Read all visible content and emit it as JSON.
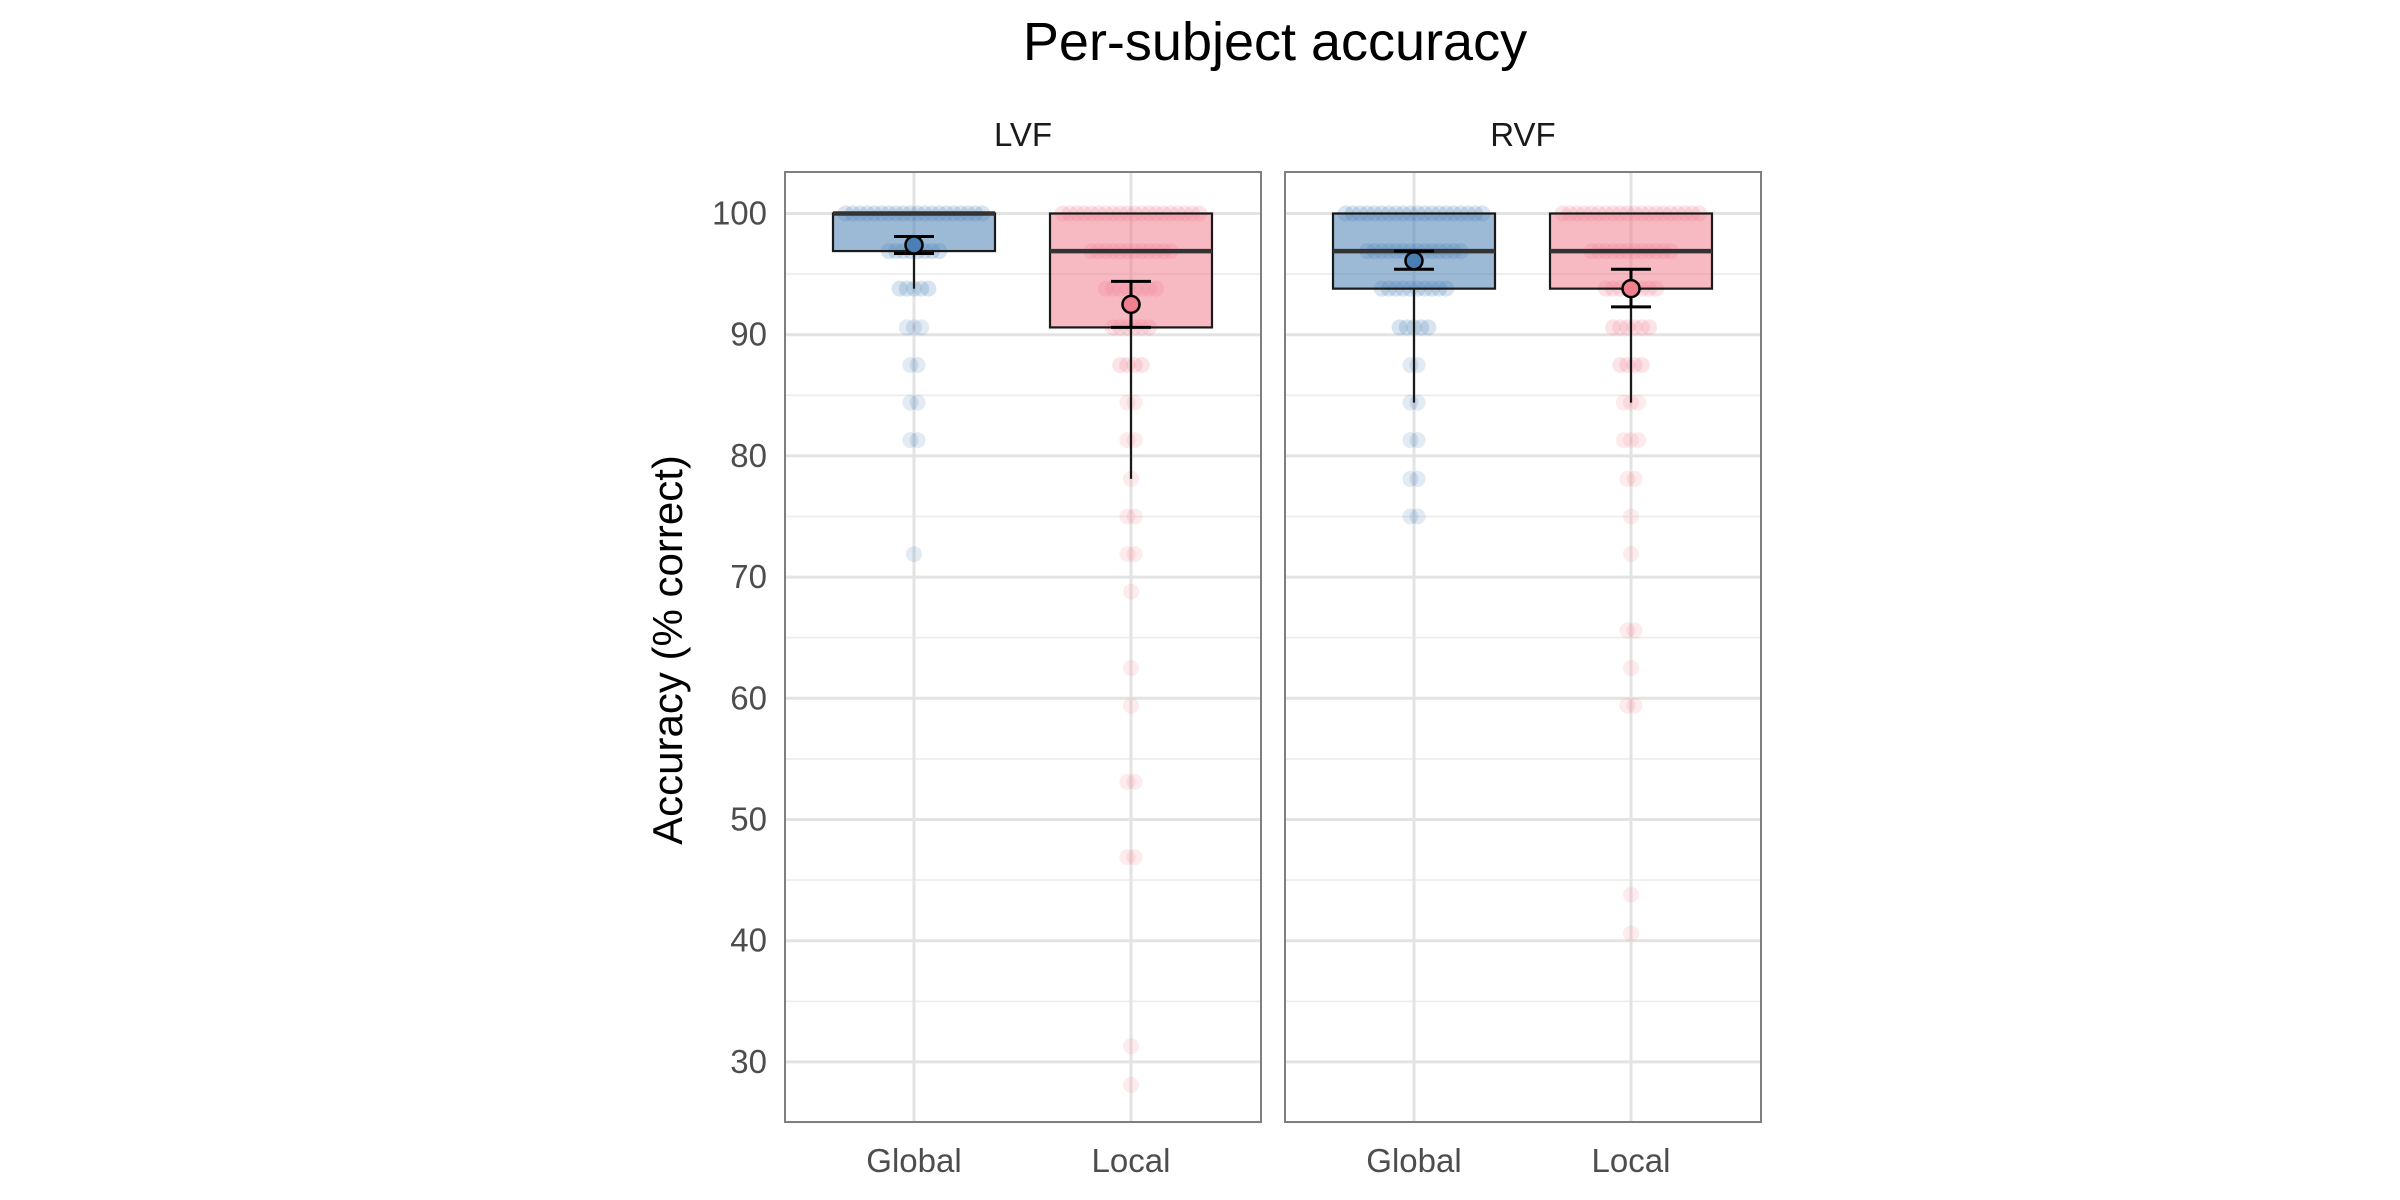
{
  "chart_data": {
    "type": "box",
    "title": "Per-subject accuracy",
    "xlabel": "",
    "ylabel": "Accuracy (% correct)",
    "ylim": [
      25,
      103.5
    ],
    "y_ticks": [
      30,
      40,
      50,
      60,
      70,
      80,
      90,
      100
    ],
    "categories": [
      "Global",
      "Local"
    ],
    "colors": {
      "Global": "#4A7FB5",
      "Local": "#F08090"
    },
    "facets": [
      {
        "name": "LVF",
        "groups": [
          {
            "category": "Global",
            "box": {
              "q1": 96.9,
              "median": 100,
              "q3": 100,
              "whisker_low": 93.8,
              "whisker_high": 100
            },
            "mean": 97.4,
            "ci": [
              96.7,
              98.1
            ],
            "points": [
              {
                "v": 100,
                "n": 20
              },
              {
                "v": 96.9,
                "n": 8
              },
              {
                "v": 93.8,
                "n": 5
              },
              {
                "v": 90.6,
                "n": 3
              },
              {
                "v": 87.5,
                "n": 2
              },
              {
                "v": 84.4,
                "n": 2
              },
              {
                "v": 81.3,
                "n": 2
              },
              {
                "v": 71.9,
                "n": 1
              }
            ]
          },
          {
            "category": "Local",
            "box": {
              "q1": 90.6,
              "median": 96.9,
              "q3": 100,
              "whisker_low": 78.1,
              "whisker_high": 100
            },
            "mean": 92.5,
            "ci": [
              90.6,
              94.4
            ],
            "points": [
              {
                "v": 100,
                "n": 20
              },
              {
                "v": 96.9,
                "n": 12
              },
              {
                "v": 93.8,
                "n": 8
              },
              {
                "v": 90.6,
                "n": 6
              },
              {
                "v": 87.5,
                "n": 4
              },
              {
                "v": 84.4,
                "n": 2
              },
              {
                "v": 81.3,
                "n": 2
              },
              {
                "v": 78.1,
                "n": 1
              },
              {
                "v": 75.0,
                "n": 2
              },
              {
                "v": 71.9,
                "n": 2
              },
              {
                "v": 68.8,
                "n": 1
              },
              {
                "v": 62.5,
                "n": 1
              },
              {
                "v": 59.4,
                "n": 1
              },
              {
                "v": 53.1,
                "n": 2
              },
              {
                "v": 46.9,
                "n": 2
              },
              {
                "v": 31.3,
                "n": 1
              },
              {
                "v": 28.1,
                "n": 1
              }
            ]
          }
        ]
      },
      {
        "name": "RVF",
        "groups": [
          {
            "category": "Global",
            "box": {
              "q1": 93.8,
              "median": 96.9,
              "q3": 100,
              "whisker_low": 84.4,
              "whisker_high": 100
            },
            "mean": 96.1,
            "ci": [
              95.4,
              96.9
            ],
            "points": [
              {
                "v": 100,
                "n": 20
              },
              {
                "v": 96.9,
                "n": 14
              },
              {
                "v": 93.8,
                "n": 10
              },
              {
                "v": 90.6,
                "n": 5
              },
              {
                "v": 87.5,
                "n": 2
              },
              {
                "v": 84.4,
                "n": 2
              },
              {
                "v": 81.3,
                "n": 2
              },
              {
                "v": 78.1,
                "n": 2
              },
              {
                "v": 75.0,
                "n": 2
              }
            ]
          },
          {
            "category": "Local",
            "box": {
              "q1": 93.8,
              "median": 96.9,
              "q3": 100,
              "whisker_low": 84.4,
              "whisker_high": 100
            },
            "mean": 93.8,
            "ci": [
              92.3,
              95.4
            ],
            "points": [
              {
                "v": 100,
                "n": 20
              },
              {
                "v": 96.9,
                "n": 12
              },
              {
                "v": 93.8,
                "n": 8
              },
              {
                "v": 90.6,
                "n": 6
              },
              {
                "v": 87.5,
                "n": 4
              },
              {
                "v": 84.4,
                "n": 3
              },
              {
                "v": 81.3,
                "n": 3
              },
              {
                "v": 78.1,
                "n": 2
              },
              {
                "v": 75.0,
                "n": 1
              },
              {
                "v": 71.9,
                "n": 1
              },
              {
                "v": 65.6,
                "n": 2
              },
              {
                "v": 62.5,
                "n": 1
              },
              {
                "v": 59.4,
                "n": 2
              },
              {
                "v": 43.8,
                "n": 1
              },
              {
                "v": 40.6,
                "n": 1
              }
            ]
          }
        ]
      }
    ]
  }
}
